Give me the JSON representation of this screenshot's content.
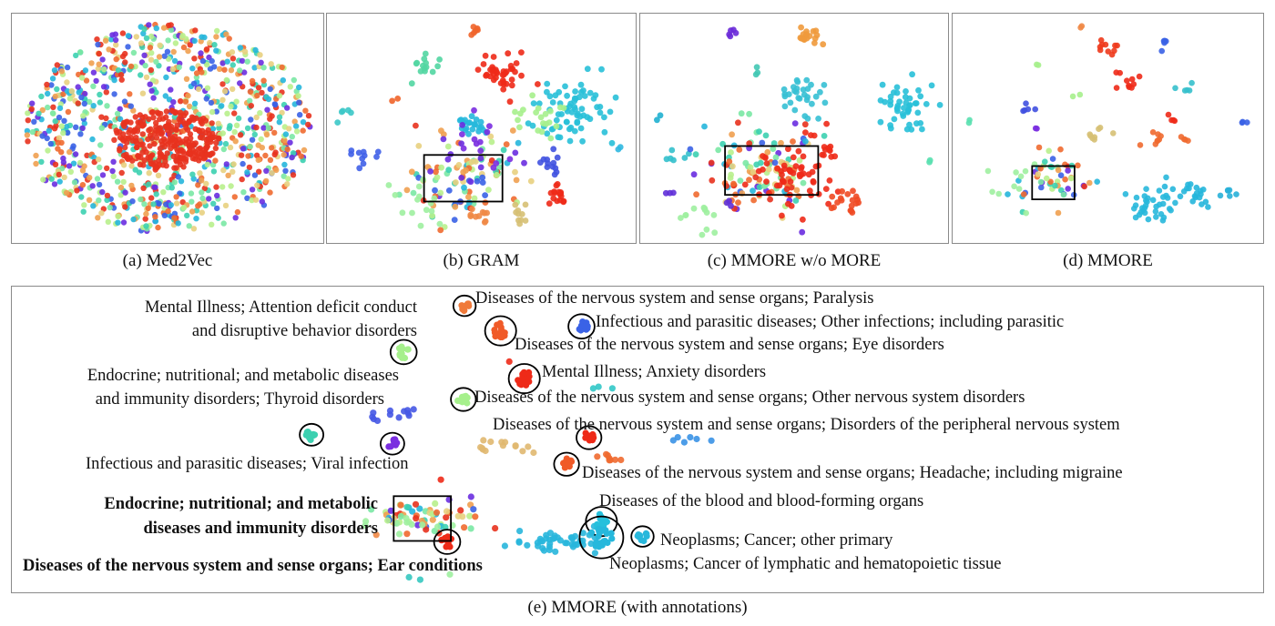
{
  "figure": {
    "captions": {
      "a": "(a) Med2Vec",
      "b": "(b) GRAM",
      "c": "(c) MMORE w/o MORE",
      "d": "(d) MMORE",
      "e": "(e) MMORE (with annotations)"
    },
    "annotations": {
      "mental_adhd_1": "Mental Illness; Attention deficit conduct",
      "mental_adhd_2": "and disruptive behavior disorders",
      "endocrine_thyroid_1": "Endocrine; nutritional; and metabolic diseases",
      "endocrine_thyroid_2": "and immunity disorders; Thyroid disorders",
      "viral": "Infectious and parasitic diseases; Viral infection",
      "endocrine_bold_1": "Endocrine; nutritional; and metabolic",
      "endocrine_bold_2": "diseases and immunity disorders",
      "ear": "Diseases of the nervous system and sense organs; Ear conditions",
      "paralysis": "Diseases of the nervous system and sense organs; Paralysis",
      "other_infections": "Infectious and parasitic diseases; Other infections; including parasitic",
      "eye": "Diseases of the nervous system and sense organs; Eye disorders",
      "anxiety": "Mental Illness; Anxiety disorders",
      "other_nervous": "Diseases of the nervous system and sense organs; Other nervous system disorders",
      "peripheral": "Diseases of the nervous system and sense organs; Disorders of the peripheral nervous system",
      "headache": "Diseases of the nervous system and sense organs; Headache; including migraine",
      "blood": "Diseases of the blood and blood-forming organs",
      "neoplasm_primary": "Neoplasms; Cancer; other primary",
      "neoplasm_lymph": "Neoplasms; Cancer of lymphatic and hematopoietic tissue"
    }
  },
  "chart_data": [
    {
      "type": "scatter",
      "title": "(a) Med2Vec",
      "xlabel": "",
      "ylabel": "",
      "grid": false,
      "legend": "none",
      "seed": 11,
      "clusters": [
        {
          "shape": "ellipse",
          "x": 0,
          "y": 0,
          "rx": 1.0,
          "ry": 1.0,
          "n": 900,
          "color": "mixed"
        },
        {
          "shape": "ellipse",
          "x": 0,
          "y": 0.05,
          "rx": 0.38,
          "ry": 0.28,
          "n": 260,
          "color": "#e8321e"
        }
      ]
    },
    {
      "type": "scatter",
      "title": "(b) GRAM",
      "xlabel": "",
      "ylabel": "",
      "grid": false,
      "legend": "none",
      "seed": 23,
      "highlight_box": {
        "x0": 0.31,
        "y0": 0.62,
        "x1": 0.57,
        "y1": 0.83
      },
      "clusters": [
        {
          "x": 0.48,
          "y": 0.06,
          "r": 0.012,
          "n": 6,
          "color": "#f0642a"
        },
        {
          "x": 0.32,
          "y": 0.21,
          "r": 0.025,
          "n": 14,
          "color": "#52d6a2"
        },
        {
          "x": 0.56,
          "y": 0.25,
          "r": 0.045,
          "n": 40,
          "color": "#ee2a18"
        },
        {
          "x": 0.79,
          "y": 0.42,
          "r": 0.07,
          "n": 70,
          "color": "#28c0d8"
        },
        {
          "x": 0.7,
          "y": 0.45,
          "r": 0.04,
          "n": 20,
          "color": "#a6f08c"
        },
        {
          "x": 0.47,
          "y": 0.47,
          "r": 0.03,
          "n": 22,
          "color": "#26b8dc"
        },
        {
          "x": 0.05,
          "y": 0.44,
          "r": 0.015,
          "n": 5,
          "color": "#3cc8c8"
        },
        {
          "x": 0.22,
          "y": 0.37,
          "r": 0.008,
          "n": 2,
          "color": "#f0642a"
        },
        {
          "x": 0.1,
          "y": 0.62,
          "r": 0.02,
          "n": 10,
          "color": "#4060e8"
        },
        {
          "x": 0.72,
          "y": 0.65,
          "r": 0.025,
          "n": 12,
          "color": "#4052e0"
        },
        {
          "x": 0.44,
          "y": 0.71,
          "r": 0.09,
          "n": 110,
          "color": "mixed"
        },
        {
          "x": 0.76,
          "y": 0.8,
          "r": 0.02,
          "n": 16,
          "color": "#ee2a18"
        },
        {
          "x": 0.63,
          "y": 0.88,
          "r": 0.02,
          "n": 10,
          "color": "#d6c074"
        },
        {
          "x": 0.49,
          "y": 0.89,
          "r": 0.02,
          "n": 10,
          "color": "#f08846"
        },
        {
          "x": 0.96,
          "y": 0.59,
          "r": 0.006,
          "n": 2,
          "color": "#30b8e0"
        },
        {
          "x": 0.28,
          "y": 0.85,
          "r": 0.06,
          "n": 14,
          "color": "#9ef0a0"
        },
        {
          "x": 0.52,
          "y": 0.55,
          "r": 0.04,
          "n": 12,
          "color": "#7a2ee0"
        }
      ]
    },
    {
      "type": "scatter",
      "title": "(c) MMORE w/o MORE",
      "xlabel": "",
      "ylabel": "",
      "grid": false,
      "legend": "none",
      "seed": 37,
      "highlight_box": {
        "x0": 0.27,
        "y0": 0.58,
        "x1": 0.58,
        "y1": 0.8
      },
      "clusters": [
        {
          "x": 0.29,
          "y": 0.07,
          "r": 0.012,
          "n": 5,
          "color": "#6a2ad8"
        },
        {
          "x": 0.55,
          "y": 0.08,
          "r": 0.025,
          "n": 18,
          "color": "#f09a3c"
        },
        {
          "x": 0.37,
          "y": 0.25,
          "r": 0.01,
          "n": 3,
          "color": "#42c8b4"
        },
        {
          "x": 0.53,
          "y": 0.35,
          "r": 0.04,
          "n": 30,
          "color": "#36c0d4"
        },
        {
          "x": 0.87,
          "y": 0.4,
          "r": 0.05,
          "n": 45,
          "color": "#28c0d8"
        },
        {
          "x": 0.05,
          "y": 0.45,
          "r": 0.008,
          "n": 2,
          "color": "#20b0d0"
        },
        {
          "x": 0.11,
          "y": 0.62,
          "r": 0.015,
          "n": 6,
          "color": "#34c0cc"
        },
        {
          "x": 0.38,
          "y": 0.67,
          "r": 0.1,
          "n": 120,
          "color": "mixed"
        },
        {
          "x": 0.5,
          "y": 0.72,
          "r": 0.07,
          "n": 60,
          "color": "#ee2a18"
        },
        {
          "x": 0.67,
          "y": 0.82,
          "r": 0.03,
          "n": 18,
          "color": "#f04a24"
        },
        {
          "x": 0.62,
          "y": 0.6,
          "r": 0.015,
          "n": 8,
          "color": "#ee2a18"
        },
        {
          "x": 0.08,
          "y": 0.8,
          "r": 0.01,
          "n": 3,
          "color": "#6030d8"
        },
        {
          "x": 0.28,
          "y": 0.84,
          "r": 0.01,
          "n": 3,
          "color": "#6030d8"
        },
        {
          "x": 0.95,
          "y": 0.65,
          "r": 0.006,
          "n": 2,
          "color": "#5ae0b0"
        },
        {
          "x": 0.22,
          "y": 0.9,
          "r": 0.05,
          "n": 12,
          "color": "#9ef0a0"
        }
      ]
    },
    {
      "type": "scatter",
      "title": "(d) MMORE",
      "xlabel": "",
      "ylabel": "",
      "grid": false,
      "legend": "none",
      "seed": 51,
      "highlight_box": {
        "x0": 0.25,
        "y0": 0.67,
        "x1": 0.39,
        "y1": 0.82
      },
      "clusters": [
        {
          "x": 0.41,
          "y": 0.05,
          "r": 0.006,
          "n": 2,
          "color": "#f08846"
        },
        {
          "x": 0.5,
          "y": 0.13,
          "r": 0.02,
          "n": 10,
          "color": "#ee3a1c"
        },
        {
          "x": 0.69,
          "y": 0.12,
          "r": 0.012,
          "n": 5,
          "color": "#3a62e6"
        },
        {
          "x": 0.27,
          "y": 0.21,
          "r": 0.006,
          "n": 2,
          "color": "#a6f08c"
        },
        {
          "x": 0.56,
          "y": 0.29,
          "r": 0.02,
          "n": 10,
          "color": "#ee2a18"
        },
        {
          "x": 0.75,
          "y": 0.31,
          "r": 0.012,
          "n": 5,
          "color": "#36c0cc"
        },
        {
          "x": 0.4,
          "y": 0.35,
          "r": 0.008,
          "n": 2,
          "color": "#a6f08c"
        },
        {
          "x": 0.22,
          "y": 0.4,
          "r": 0.015,
          "n": 5,
          "color": "#4050e0"
        },
        {
          "x": 0.05,
          "y": 0.46,
          "r": 0.006,
          "n": 2,
          "color": "#5ae0b0"
        },
        {
          "x": 0.28,
          "y": 0.5,
          "r": 0.008,
          "n": 2,
          "color": "#7a2ee0"
        },
        {
          "x": 0.71,
          "y": 0.47,
          "r": 0.012,
          "n": 4,
          "color": "#ee2a18"
        },
        {
          "x": 0.47,
          "y": 0.52,
          "r": 0.02,
          "n": 8,
          "color": "#d6c074"
        },
        {
          "x": 0.66,
          "y": 0.56,
          "r": 0.02,
          "n": 8,
          "color": "#f06a30"
        },
        {
          "x": 0.75,
          "y": 0.55,
          "r": 0.01,
          "n": 4,
          "color": "#f06a30"
        },
        {
          "x": 0.95,
          "y": 0.48,
          "r": 0.008,
          "n": 3,
          "color": "#3a62e6"
        },
        {
          "x": 0.33,
          "y": 0.73,
          "r": 0.06,
          "n": 50,
          "color": "mixed"
        },
        {
          "x": 0.64,
          "y": 0.85,
          "r": 0.04,
          "n": 35,
          "color": "#28b8dc"
        },
        {
          "x": 0.77,
          "y": 0.8,
          "r": 0.03,
          "n": 20,
          "color": "#26b6dc"
        },
        {
          "x": 0.9,
          "y": 0.8,
          "r": 0.015,
          "n": 6,
          "color": "#28b0d8"
        },
        {
          "x": 0.2,
          "y": 0.73,
          "r": 0.05,
          "n": 10,
          "color": "#9ef0a0"
        }
      ]
    },
    {
      "type": "scatter",
      "title": "(e) MMORE (with annotations)",
      "xlabel": "",
      "ylabel": "",
      "grid": false,
      "legend": "none",
      "seed": 77,
      "highlight_box": {
        "x0": 0.304,
        "y0": 0.69,
        "x1": 0.35,
        "y1": 0.84
      },
      "circled": [
        {
          "x": 0.361,
          "y": 0.052,
          "r": 0.0075,
          "color": "#f07a3a"
        },
        {
          "x": 0.39,
          "y": 0.136,
          "r": 0.011,
          "color": "#f05a28"
        },
        {
          "x": 0.455,
          "y": 0.121,
          "r": 0.009,
          "color": "#3a62e6"
        },
        {
          "x": 0.312,
          "y": 0.207,
          "r": 0.009,
          "color": "#a6f08c"
        },
        {
          "x": 0.409,
          "y": 0.296,
          "r": 0.011,
          "color": "#ee2a18"
        },
        {
          "x": 0.36,
          "y": 0.366,
          "r": 0.0085,
          "color": "#a6f08c"
        },
        {
          "x": 0.238,
          "y": 0.484,
          "r": 0.008,
          "color": "#3cd0b0"
        },
        {
          "x": 0.303,
          "y": 0.514,
          "r": 0.008,
          "color": "#7a2ee0"
        },
        {
          "x": 0.461,
          "y": 0.494,
          "r": 0.0085,
          "color": "#ee2a18"
        },
        {
          "x": 0.443,
          "y": 0.583,
          "r": 0.0085,
          "color": "#f05a28"
        },
        {
          "x": 0.347,
          "y": 0.843,
          "r": 0.009,
          "color": "#ee2a18"
        },
        {
          "x": 0.471,
          "y": 0.775,
          "r": 0.011,
          "color": "#26c0dc"
        },
        {
          "x": 0.471,
          "y": 0.828,
          "r": 0.016,
          "color": "#26b8dc"
        },
        {
          "x": 0.504,
          "y": 0.825,
          "r": 0.0075,
          "color": "#28b8dc"
        }
      ],
      "clusters": [
        {
          "x": 0.302,
          "y": 0.42,
          "r": 0.012,
          "n": 12,
          "color": "#4658e4"
        },
        {
          "x": 0.389,
          "y": 0.53,
          "r": 0.012,
          "n": 14,
          "color": "#e0b870"
        },
        {
          "x": 0.472,
          "y": 0.56,
          "r": 0.008,
          "n": 8,
          "color": "#f06a30"
        },
        {
          "x": 0.54,
          "y": 0.49,
          "r": 0.008,
          "n": 6,
          "color": "#3a92e6"
        },
        {
          "x": 0.472,
          "y": 0.33,
          "r": 0.006,
          "n": 3,
          "color": "#32c8c8"
        },
        {
          "x": 0.402,
          "y": 0.24,
          "r": 0.004,
          "n": 1,
          "color": "#ee2a18"
        },
        {
          "x": 0.327,
          "y": 0.76,
          "r": 0.022,
          "n": 60,
          "color": "mixed"
        },
        {
          "x": 0.437,
          "y": 0.84,
          "r": 0.015,
          "n": 45,
          "color": "#28b6dc"
        },
        {
          "x": 0.345,
          "y": 0.63,
          "r": 0.004,
          "n": 1,
          "color": "#ee2a18"
        },
        {
          "x": 0.296,
          "y": 0.82,
          "r": 0.004,
          "n": 1,
          "color": "#f08846"
        },
        {
          "x": 0.32,
          "y": 0.96,
          "r": 0.006,
          "n": 2,
          "color": "#36c8c0"
        },
        {
          "x": 0.352,
          "y": 0.95,
          "r": 0.004,
          "n": 1,
          "color": "#9ef0a0"
        },
        {
          "x": 0.31,
          "y": 0.79,
          "r": 0.025,
          "n": 10,
          "color": "#9ef0a0"
        }
      ]
    }
  ]
}
